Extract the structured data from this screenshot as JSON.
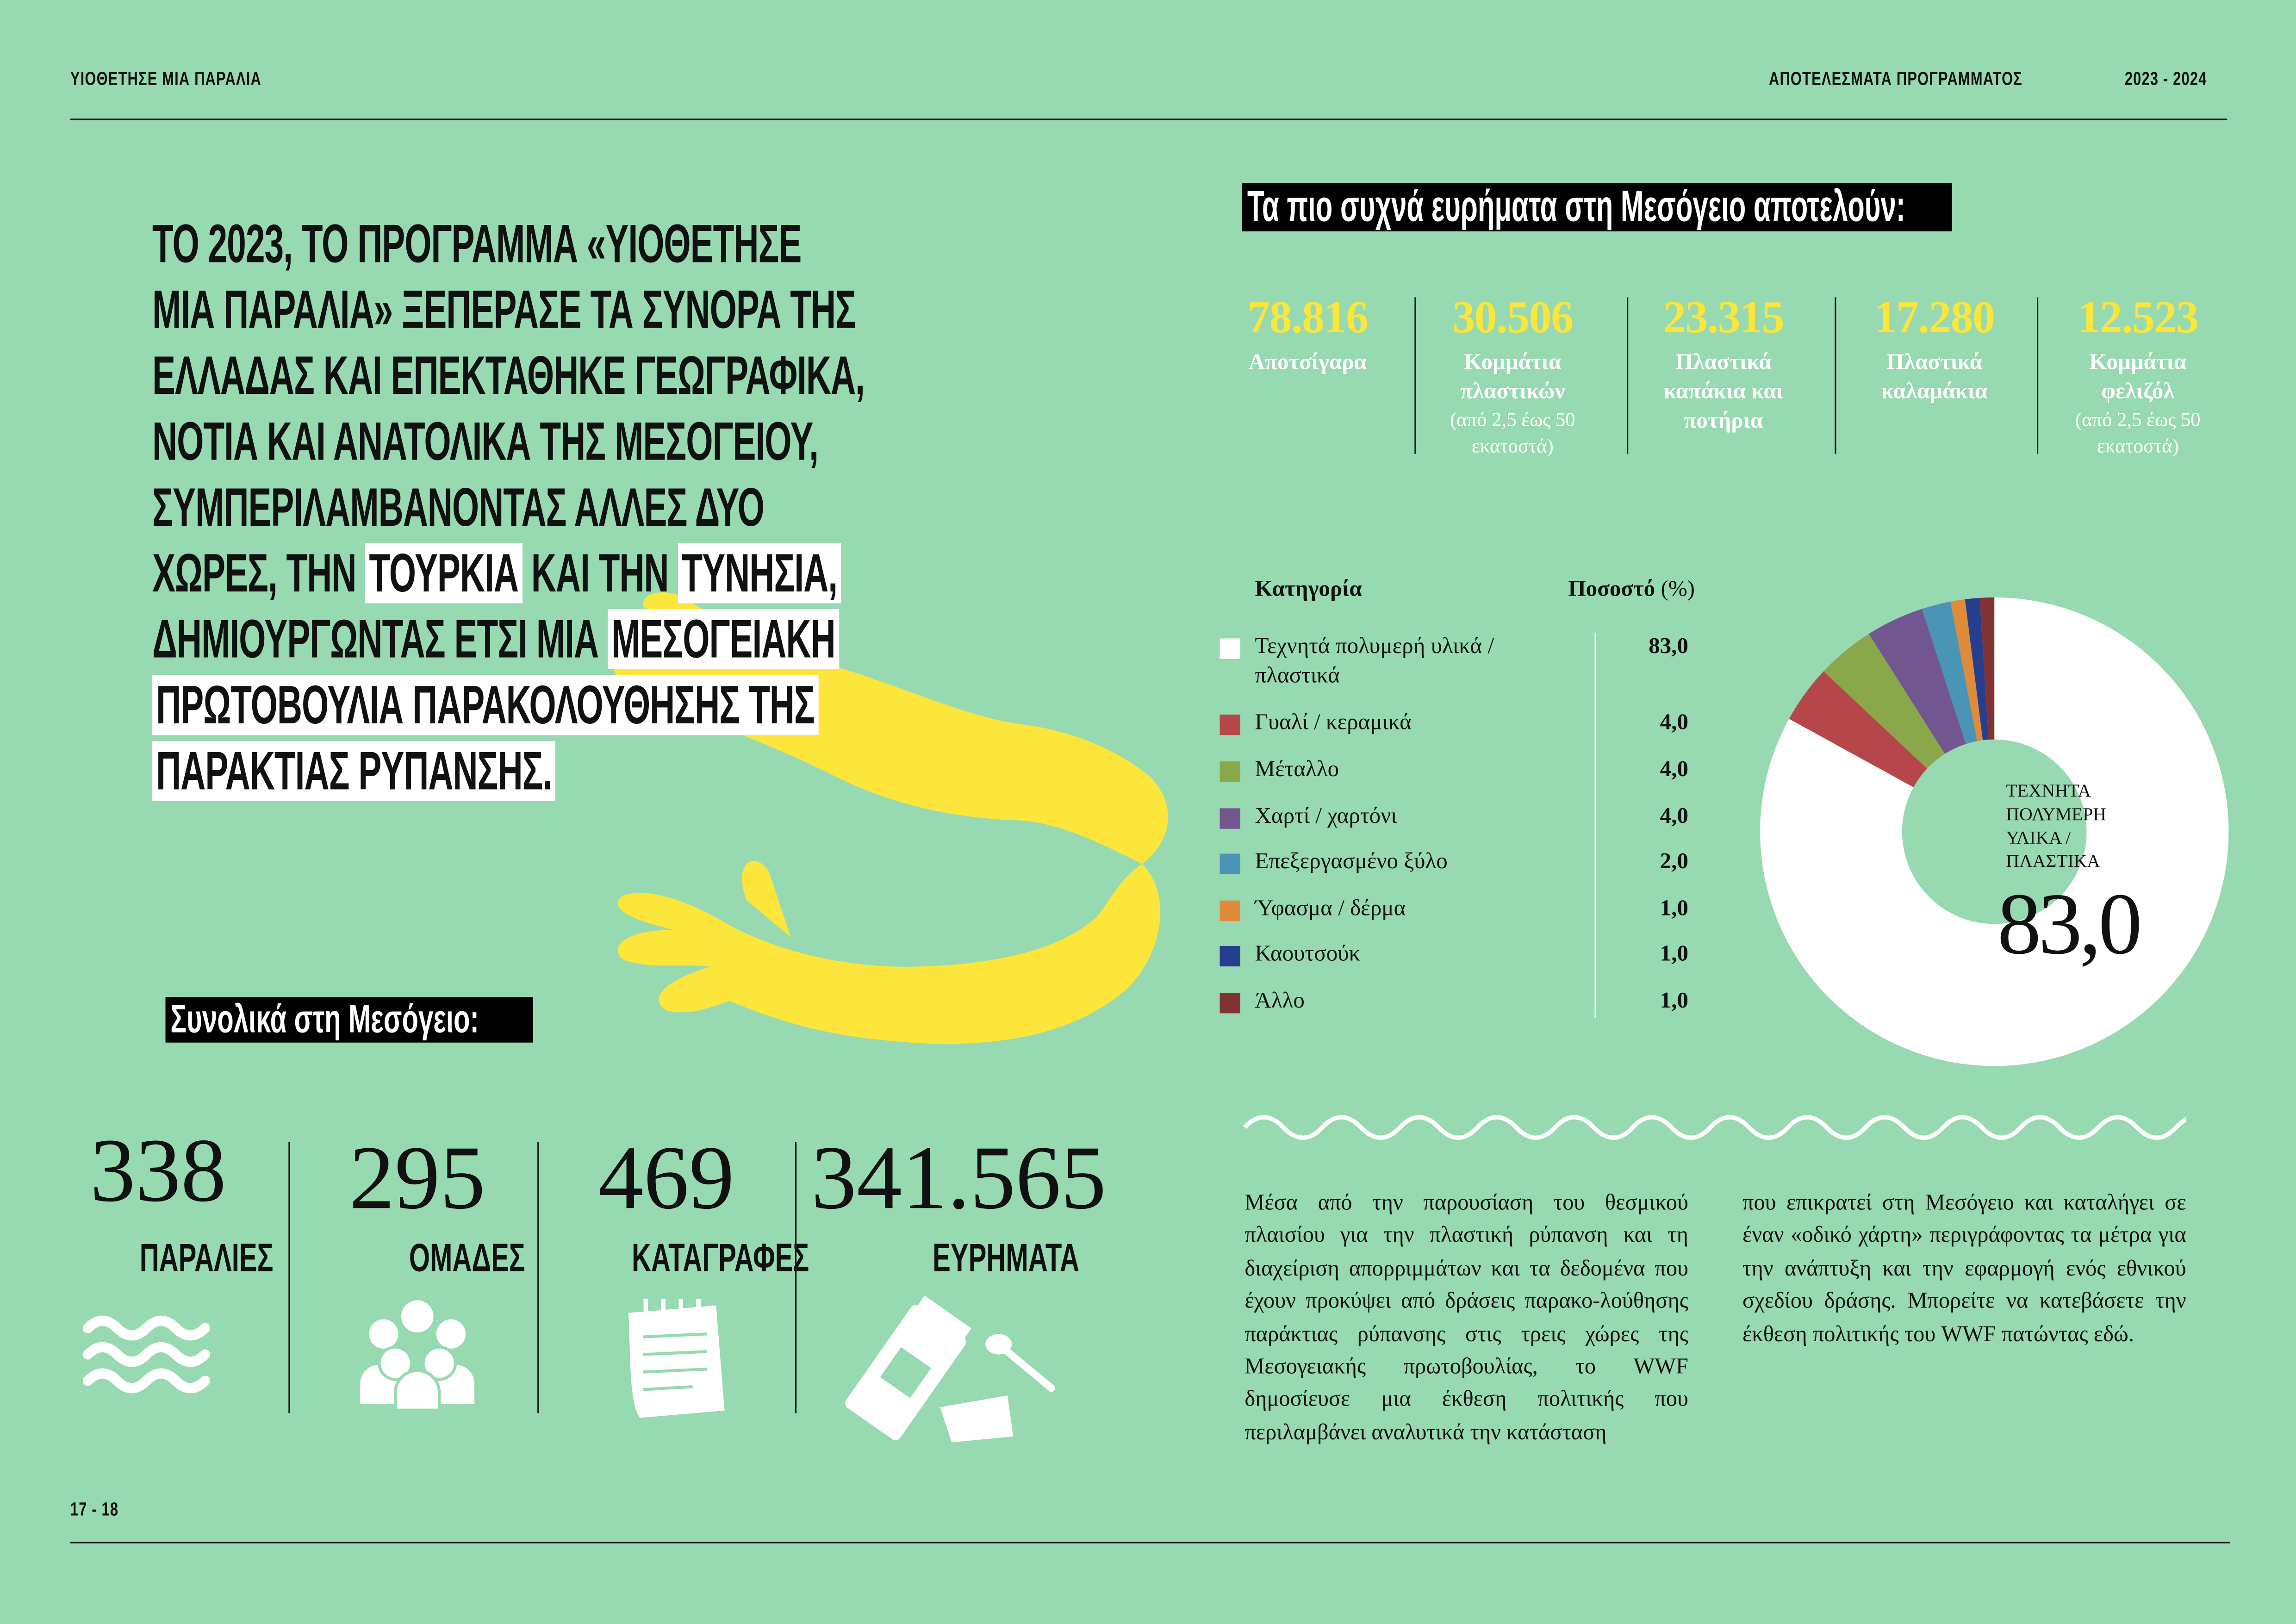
{
  "header": {
    "left": "ΥΙΟΘΕΤΗΣΕ ΜΙΑ ΠΑΡΑΛΙΑ",
    "section": "ΑΠΟΤΕΛΕΣΜΑΤΑ ΠΡΟΓΡΑΜΜΑΤΟΣ",
    "years": "2023 - 2024"
  },
  "footer": {
    "pages": "17 - 18"
  },
  "headline": [
    [
      {
        "t": "ΤΟ 2023, ΤΟ ΠΡΟΓΡΑΜΜΑ «ΥΙΟΘΕΤΗΣΕ",
        "hl": false
      }
    ],
    [
      {
        "t": "ΜΙΑ ΠΑΡΑΛΙΑ» ΞΕΠΕΡΑΣΕ ΤΑ ΣΥΝΟΡΑ ΤΗΣ",
        "hl": false
      }
    ],
    [
      {
        "t": "ΕΛΛΑΔΑΣ ΚΑΙ  ΕΠΕΚΤΑΘΗΚΕ ΓΕΩΓΡΑΦΙΚΑ,",
        "hl": false
      }
    ],
    [
      {
        "t": "ΝΟΤΙΑ ΚΑΙ ΑΝΑΤΟΛΙΚΑ ΤΗΣ ΜΕΣΟΓΕΙΟΥ,",
        "hl": false
      }
    ],
    [
      {
        "t": "ΣΥΜΠΕΡΙΛΑΜΒΑΝΟΝΤΑΣ ΑΛΛΕΣ ΔΥΟ",
        "hl": false
      }
    ],
    [
      {
        "t": "ΧΩΡΕΣ, ΤΗΝ ",
        "hl": false
      },
      {
        "t": "ΤΟΥΡΚΙΑ",
        "hl": true
      },
      {
        "t": "  ΚΑΙ ΤΗΝ ",
        "hl": false
      },
      {
        "t": "ΤΥΝΗΣΙΑ,",
        "hl": true
      }
    ],
    [
      {
        "t": "ΔΗΜΙΟΥΡΓΩΝΤΑΣ ΕΤΣΙ ΜΙΑ ",
        "hl": false
      },
      {
        "t": "ΜΕΣΟΓΕΙΑΚΗ",
        "hl": true
      }
    ],
    [
      {
        "t": "ΠΡΩΤΟΒΟΥΛΙΑ ΠΑΡΑΚΟΛΟΥΘΗΣΗΣ ΤΗΣ",
        "hl": true
      }
    ],
    [
      {
        "t": "ΠΑΡΑΚΤΙΑΣ ΡΥΠΑΝΣΗΣ.",
        "hl": true
      }
    ]
  ],
  "totals": {
    "title": "Συνολικά στη Μεσόγειο:",
    "items": [
      {
        "value": "338",
        "label": "ΠΑΡΑΛΙΕΣ",
        "icon": "waves-icon"
      },
      {
        "value": "295",
        "label": "ΟΜΑΔΕΣ",
        "icon": "group-icon"
      },
      {
        "value": "469",
        "label": "ΚΑΤΑΓΡΑΦΕΣ",
        "icon": "notepad-icon"
      },
      {
        "value": "341.565",
        "label": "ΕΥΡΗΜΑΤΑ",
        "icon": "litter-icon"
      }
    ]
  },
  "findings": {
    "title": "Τα πιο συχνά ευρήματα στη Μεσόγειο αποτελούν:",
    "items": [
      {
        "value": "78.816",
        "label": "Αποτσίγαρα",
        "sub": ""
      },
      {
        "value": "30.506",
        "label": "Κομμάτια πλαστικών",
        "sub": "(από 2,5 έως 50 εκατοστά)"
      },
      {
        "value": "23.315",
        "label": "Πλαστικά καπάκια και ποτήρια",
        "sub": ""
      },
      {
        "value": "17.280",
        "label": "Πλαστικά καλαμάκια",
        "sub": ""
      },
      {
        "value": "12.523",
        "label": "Κομμάτια φελιζόλ",
        "sub": "(από 2,5 έως 50 εκατοστά)"
      }
    ]
  },
  "chart_data": {
    "type": "pie",
    "donut": true,
    "columns": {
      "category": "Κατηγορία",
      "percent_bold": "Ποσοστό",
      "percent_unit": "(%)"
    },
    "categories": [
      "Τεχνητά πολυμερή υλικά / πλαστικά",
      "Γυαλί / κεραμικά",
      "Μέταλλο",
      "Χαρτί / χαρτόνι",
      "Επεξεργασμένο ξύλο",
      "Ύφασμα / δέρμα",
      "Καουτσούκ",
      "Άλλο"
    ],
    "values": [
      83.0,
      4.0,
      4.0,
      4.0,
      2.0,
      1.0,
      1.0,
      1.0
    ],
    "labels": [
      "83,0",
      "4,0",
      "4,0",
      "4,0",
      "2,0",
      "1,0",
      "1,0",
      "1,0"
    ],
    "colors": [
      "#ffffff",
      "#b5474b",
      "#8aa84a",
      "#725690",
      "#4a94b6",
      "#e08a3c",
      "#263e8e",
      "#813333"
    ],
    "center_label": "ΤΕΧΝΗΤΑ ΠΟΛΥΜΕΡΗ ΥΛΙΚΑ / ΠΛΑΣΤΙΚΑ",
    "center_value": "83,0"
  },
  "body": {
    "col1": "Μέσα από την παρουσίαση του θεσμικού πλαισίου για την πλαστική ρύπανση και τη διαχείριση απορριμμάτων και τα δεδομένα που έχουν προκύψει από δράσεις παρακο-λούθησης παράκτιας ρύπανσης στις τρεις χώρες της Μεσογειακής πρωτοβουλίας, το WWF δημοσίευσε μια έκθεση πολιτικής που περιλαμβάνει αναλυτικά την κατάσταση",
    "col2": "που επικρατεί στη Μεσόγειο και καταλήγει σε έναν «οδικό χάρτη» περιγράφοντας τα μέτρα για την ανάπτυξη και την εφαρμογή ενός εθνικού σχεδίου δράσης. Μπορείτε να κατεβάσετε την έκθεση πολιτικής του WWF πατώντας εδώ."
  },
  "colors": {
    "background": "#97d9b0",
    "accent_yellow": "#fde63c"
  }
}
